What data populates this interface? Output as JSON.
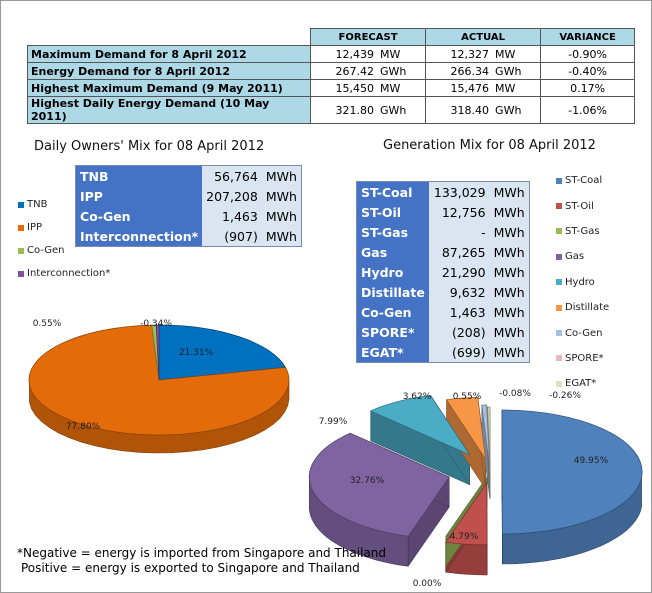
{
  "demand_table": {
    "headers": [
      "",
      "FORECAST",
      "ACTUAL",
      "VARIANCE"
    ],
    "rows": [
      {
        "label": "Maximum Demand for 8 April 2012",
        "forecast": "12,439",
        "forecast_unit": "MW",
        "actual": "12,327",
        "actual_unit": "MW",
        "variance": "-0.90%"
      },
      {
        "label": "Energy Demand for 8 April 2012",
        "forecast": "267.42",
        "forecast_unit": "GWh",
        "actual": "266.34",
        "actual_unit": "GWh",
        "variance": "-0.40%"
      },
      {
        "label": "Highest Maximum Demand (9 May 2011)",
        "forecast": "15,450",
        "forecast_unit": "MW",
        "actual": "15,476",
        "actual_unit": "MW",
        "variance": "0.17%"
      },
      {
        "label": "Highest Daily Energy Demand (10 May 2011)",
        "forecast": "321.80",
        "forecast_unit": "GWh",
        "actual": "318.40",
        "actual_unit": "GWh",
        "variance": "-1.06%"
      }
    ]
  },
  "owners_mix": {
    "title": "Daily Owners' Mix for 08 April 2012",
    "rows": [
      {
        "label": "TNB",
        "value": "56,764",
        "unit": "MWh"
      },
      {
        "label": "IPP",
        "value": "207,208",
        "unit": "MWh"
      },
      {
        "label": "Co-Gen",
        "value": "1,463",
        "unit": "MWh"
      },
      {
        "label": "Interconnection*",
        "value": "(907)",
        "unit": "MWh"
      }
    ],
    "legend": [
      {
        "name": "TNB",
        "color": "#0070c0"
      },
      {
        "name": "IPP",
        "color": "#e36c09"
      },
      {
        "name": "Co-Gen",
        "color": "#9bbb59"
      },
      {
        "name": "Interconnection*",
        "color": "#7f4fa0"
      }
    ]
  },
  "generation_mix": {
    "title": "Generation Mix for 08 April 2012",
    "rows": [
      {
        "label": "ST-Coal",
        "value": "133,029",
        "unit": "MWh"
      },
      {
        "label": "ST-Oil",
        "value": "12,756",
        "unit": "MWh"
      },
      {
        "label": "ST-Gas",
        "value": "-",
        "unit": "MWh"
      },
      {
        "label": "Gas",
        "value": "87,265",
        "unit": "MWh"
      },
      {
        "label": "Hydro",
        "value": "21,290",
        "unit": "MWh"
      },
      {
        "label": "Distillate",
        "value": "9,632",
        "unit": "MWh"
      },
      {
        "label": "Co-Gen",
        "value": "1,463",
        "unit": "MWh"
      },
      {
        "label": "SPORE*",
        "value": "(208)",
        "unit": "MWh"
      },
      {
        "label": "EGAT*",
        "value": "(699)",
        "unit": "MWh"
      }
    ],
    "legend": [
      {
        "name": "ST-Coal",
        "color": "#4f81bd"
      },
      {
        "name": "ST-Oil",
        "color": "#c0504d"
      },
      {
        "name": "ST-Gas",
        "color": "#9bbb59"
      },
      {
        "name": "Gas",
        "color": "#8064a2"
      },
      {
        "name": "Hydro",
        "color": "#4bacc6"
      },
      {
        "name": "Distillate",
        "color": "#f79646"
      },
      {
        "name": "Co-Gen",
        "color": "#a5c0e0"
      },
      {
        "name": "SPORE*",
        "color": "#e6b9b8"
      },
      {
        "name": "EGAT*",
        "color": "#d7e4bd"
      }
    ]
  },
  "chart_data": [
    {
      "type": "pie",
      "title": "Daily Owners' Mix for 08 April 2012",
      "categories": [
        "TNB",
        "IPP",
        "Co-Gen",
        "Interconnection*"
      ],
      "values": [
        21.31,
        77.8,
        0.55,
        -0.34
      ],
      "labels": [
        "21.31%",
        "77.80%",
        "0.55%",
        "-0.34%"
      ],
      "legend": "left"
    },
    {
      "type": "pie",
      "title": "Generation Mix for 08 April 2012",
      "categories": [
        "ST-Coal",
        "ST-Oil",
        "ST-Gas",
        "Gas",
        "Hydro",
        "Distillate",
        "Co-Gen",
        "SPORE*",
        "EGAT*"
      ],
      "values": [
        49.95,
        4.79,
        0.0,
        32.76,
        7.99,
        3.62,
        0.55,
        -0.08,
        -0.26
      ],
      "labels": [
        "49.95%",
        "4.79%",
        "0.00%",
        "32.76%",
        "7.99%",
        "3.62%",
        "0.55%",
        "-0.08%",
        "-0.26%"
      ],
      "legend": "right"
    }
  ],
  "note": {
    "line1": "*Negative = energy is imported from Singapore and Thailand",
    "line2": "Positive = energy is exported to Singapore and Thailand"
  }
}
